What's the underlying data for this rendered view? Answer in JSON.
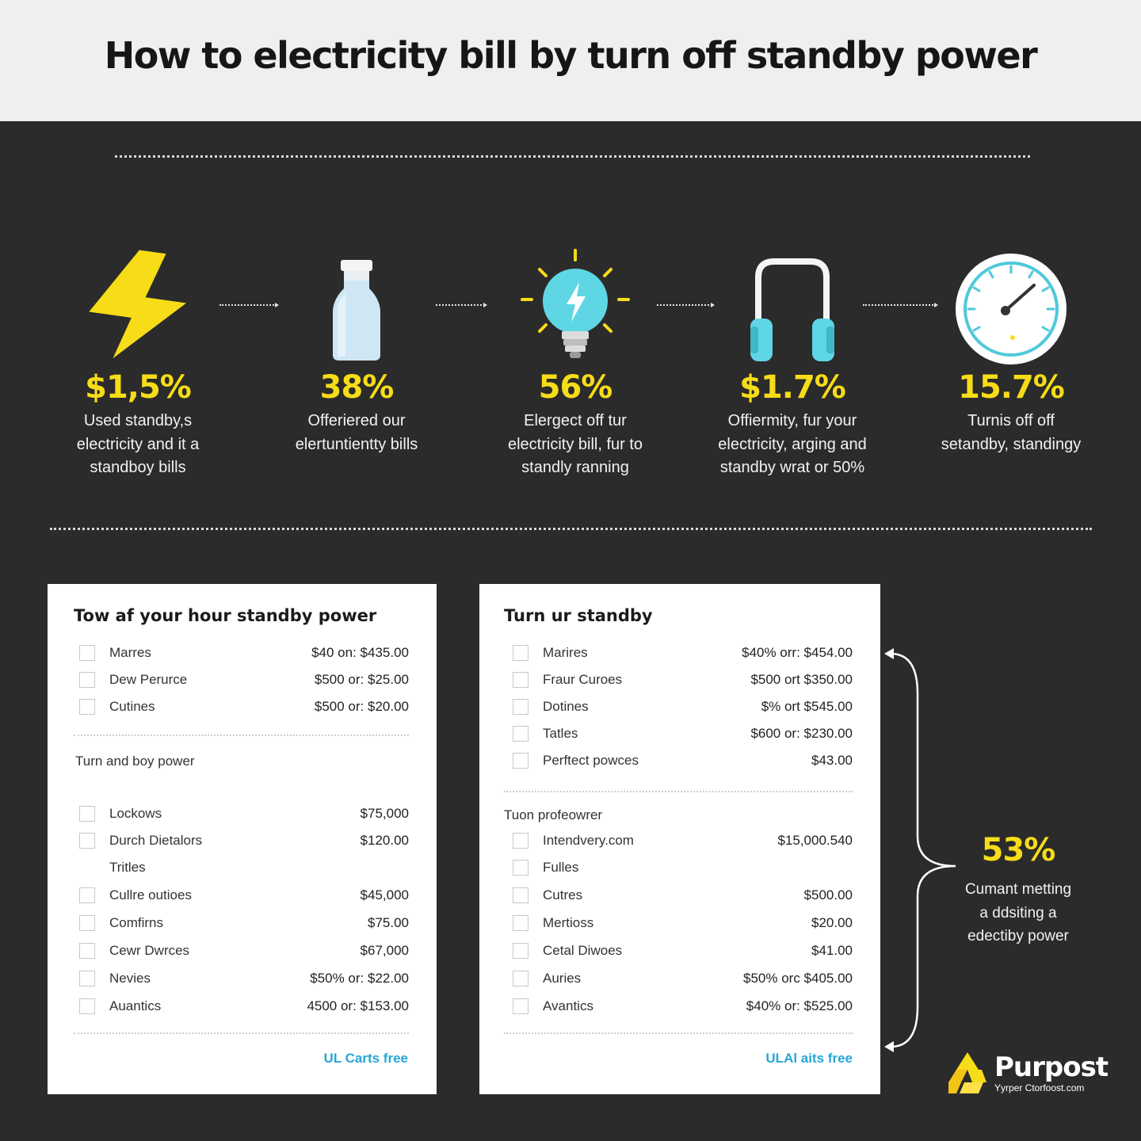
{
  "header": {
    "title": "How to electricity bill by turn off standby power"
  },
  "stats": [
    {
      "icon": "lightning-bolt-icon",
      "value": "$1,5%",
      "desc": [
        "Used standby,s",
        "electricity and it a",
        "standboy bills"
      ]
    },
    {
      "icon": "bottle-icon",
      "value": "38%",
      "desc": [
        "Offeriered our",
        "elertuntientty bills"
      ]
    },
    {
      "icon": "light-bulb-icon",
      "value": "56%",
      "desc": [
        "Elergect off tur",
        "electricity bill, fur to",
        "standly ranning"
      ]
    },
    {
      "icon": "headphones-icon",
      "value": "$1.7%",
      "desc": [
        "Offiermity, fur your",
        "electricity, arging and",
        "standby wrat or 50%"
      ]
    },
    {
      "icon": "gauge-icon",
      "value": "15.7%",
      "desc": [
        "Turnis off off",
        "setandby, standingy"
      ]
    }
  ],
  "left_card": {
    "title": "Tow af your hour standby power",
    "group1": [
      {
        "name": "Marres",
        "price": "$40 on: $435.00"
      },
      {
        "name": "Dew Perurce",
        "price": "$500 or: $25.00"
      },
      {
        "name": "Cutines",
        "price": "$500 or: $20.00"
      }
    ],
    "section2_title": "Turn and boy power",
    "group2": [
      {
        "name": "Lockows",
        "price": "$75,000",
        "checkbox": true
      },
      {
        "name": "Durch Dietalors",
        "price": "$120.00",
        "checkbox": true
      },
      {
        "name": "Tritles",
        "price": "",
        "checkbox": false
      },
      {
        "name": "Cullre outioes",
        "price": "$45,000",
        "checkbox": true
      },
      {
        "name": "Comfirns",
        "price": "$75.00",
        "checkbox": true
      },
      {
        "name": "Cewr Dwrces",
        "price": "$67,000",
        "checkbox": true
      },
      {
        "name": "Nevies",
        "price": "$50% or: $22.00",
        "checkbox": true
      },
      {
        "name": "Auantics",
        "price": "4500 or: $153.00",
        "checkbox": true
      }
    ],
    "cta": "UL Carts free"
  },
  "right_card": {
    "title": "Turn ur standby",
    "group1": [
      {
        "name": "Marires",
        "price": "$40% orr: $454.00"
      },
      {
        "name": "Fraur Curoes",
        "price": "$500 ort $350.00"
      },
      {
        "name": "Dotines",
        "price": "$% ort $545.00"
      },
      {
        "name": "Tatles",
        "price": "$600 or: $230.00"
      },
      {
        "name": "Perftect powces",
        "price": "$43.00"
      }
    ],
    "section2_title": "Tuon profeowrer",
    "group2": [
      {
        "name": "Intendvery.com",
        "price": "$15,000.540"
      },
      {
        "name": "Fulles",
        "price": ""
      },
      {
        "name": "Cutres",
        "price": "$500.00"
      },
      {
        "name": "Mertioss",
        "price": "$20.00"
      },
      {
        "name": "Cetal Diwoes",
        "price": "$41.00"
      },
      {
        "name": "Auries",
        "price": "$50% orc $405.00"
      },
      {
        "name": "Avantics",
        "price": "$40% or: $525.00"
      }
    ],
    "cta": "ULAl aits free"
  },
  "side_stat": {
    "value": "53%",
    "desc": [
      "Cumant metting",
      "a ddsiting a",
      "edectiby power"
    ]
  },
  "brand": {
    "name": "Purpost",
    "url": "Yyrper Ctorfoost.com"
  },
  "colors": {
    "accent": "#f7dc18",
    "background": "#2b2b2b",
    "cyan": "#5fd6e4",
    "link": "#27a6d6"
  }
}
